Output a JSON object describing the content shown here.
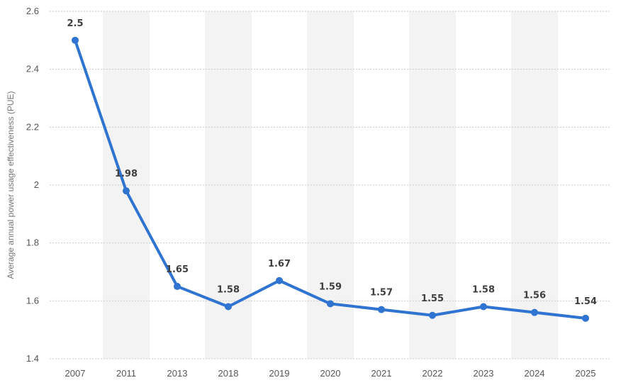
{
  "chart_data": {
    "type": "line",
    "categories": [
      "2007",
      "2011",
      "2013",
      "2018",
      "2019",
      "2020",
      "2021",
      "2022",
      "2023",
      "2024",
      "2025"
    ],
    "values": [
      2.5,
      1.98,
      1.65,
      1.58,
      1.67,
      1.59,
      1.57,
      1.55,
      1.58,
      1.56,
      1.54
    ],
    "value_labels": [
      "2.5",
      "1.98",
      "1.65",
      "1.58",
      "1.67",
      "1.59",
      "1.57",
      "1.55",
      "1.58",
      "1.56",
      "1.54"
    ],
    "y_ticks": [
      "2.6",
      "2.4",
      "2.2",
      "2",
      "1.8",
      "1.6",
      "1.4"
    ],
    "y_tick_values": [
      2.6,
      2.4,
      2.2,
      2.0,
      1.8,
      1.6,
      1.4
    ],
    "xlabel": "",
    "ylabel": "Average annual power usage effectiveness (PUE)",
    "ylim": [
      1.4,
      2.6
    ],
    "grid": true,
    "colors": {
      "line": "#2f74d0",
      "band": "#f3f3f3",
      "grid": "#c8c8c8"
    }
  }
}
